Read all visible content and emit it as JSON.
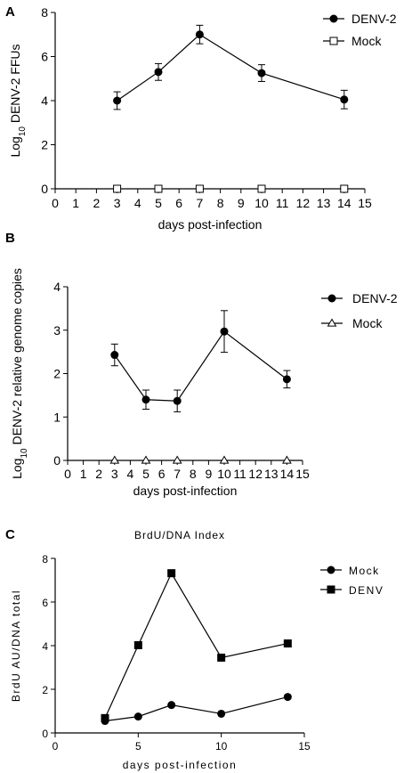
{
  "chart_data": [
    {
      "panel": "A",
      "type": "line",
      "title": "",
      "xlabel": "days post-infection",
      "ylabel": [
        "Log",
        "10",
        " DENV-2 FFUs"
      ],
      "xlim": [
        0,
        15
      ],
      "ylim": [
        0,
        8
      ],
      "x_ticks": [
        0,
        1,
        2,
        3,
        4,
        5,
        6,
        7,
        8,
        9,
        10,
        11,
        12,
        13,
        14,
        15
      ],
      "y_ticks": [
        0,
        2,
        4,
        6,
        8
      ],
      "legend_position": "top-right",
      "series": [
        {
          "name": "DENV-2",
          "marker": "filled-circle",
          "x": [
            3,
            5,
            7,
            10,
            14
          ],
          "y": [
            4.0,
            5.3,
            7.0,
            5.25,
            4.05
          ],
          "err": [
            0.4,
            0.38,
            0.42,
            0.38,
            0.42
          ]
        },
        {
          "name": "Mock",
          "marker": "open-square",
          "x": [
            3,
            5,
            7,
            10,
            14
          ],
          "y": [
            0,
            0,
            0,
            0,
            0
          ]
        }
      ]
    },
    {
      "panel": "B",
      "type": "line",
      "title": "",
      "xlabel": "days post-infection",
      "ylabel": [
        "Log",
        "10",
        " DENV-2 relative genome copies"
      ],
      "xlim": [
        0,
        15
      ],
      "ylim": [
        0,
        4
      ],
      "x_ticks": [
        0,
        1,
        2,
        3,
        4,
        5,
        6,
        7,
        8,
        9,
        10,
        11,
        12,
        13,
        14,
        15
      ],
      "y_ticks": [
        0,
        1,
        2,
        3,
        4
      ],
      "legend_position": "top-right",
      "series": [
        {
          "name": "DENV-2",
          "marker": "filled-circle",
          "x": [
            3,
            5,
            7,
            10,
            14
          ],
          "y": [
            2.43,
            1.4,
            1.37,
            2.97,
            1.87
          ],
          "err": [
            0.25,
            0.22,
            0.25,
            0.48,
            0.2
          ]
        },
        {
          "name": "Mock",
          "marker": "open-triangle",
          "x": [
            3,
            5,
            7,
            10,
            14
          ],
          "y": [
            0,
            0,
            0,
            0,
            0
          ]
        }
      ]
    },
    {
      "panel": "C",
      "type": "line",
      "title": "BrdU/DNA Index",
      "xlabel": "days post-infection",
      "ylabel": [
        "BrdU AU/DNA total"
      ],
      "xlim": [
        0,
        15
      ],
      "ylim": [
        0,
        8
      ],
      "x_ticks": [
        0,
        5,
        10,
        15
      ],
      "y_ticks": [
        0,
        2,
        4,
        6,
        8
      ],
      "legend_position": "top-right",
      "series": [
        {
          "name": "Mock",
          "marker": "filled-circle",
          "x": [
            3,
            5,
            7,
            10,
            14
          ],
          "y": [
            0.55,
            0.75,
            1.28,
            0.88,
            1.65
          ]
        },
        {
          "name": "DENV",
          "marker": "filled-square",
          "x": [
            3,
            5,
            7,
            10,
            14
          ],
          "y": [
            0.68,
            4.02,
            7.32,
            3.45,
            4.1
          ]
        }
      ]
    }
  ]
}
